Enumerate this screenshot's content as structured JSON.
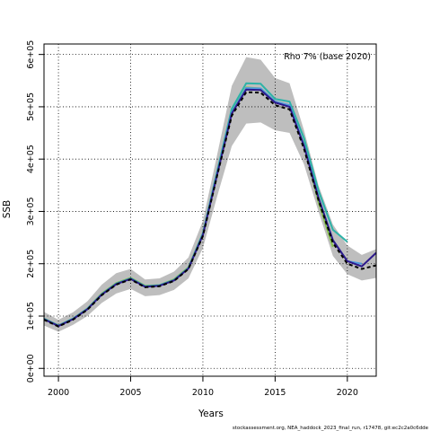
{
  "chart_data": {
    "type": "line",
    "title": "",
    "xlabel": "Years",
    "ylabel": "SSB",
    "annotation": "Rho 7% (base 2020)",
    "footer": "stockassessment.org, NEA_haddock_2023_final_run, r17478, git:ec2c2a0c6dde",
    "xlim": [
      1999,
      2022
    ],
    "ylim": [
      -15000,
      620000
    ],
    "x_ticks": [
      2000,
      2005,
      2010,
      2015,
      2020
    ],
    "x_tick_labels": [
      "2000",
      "2005",
      "2010",
      "2015",
      "2020"
    ],
    "y_ticks": [
      0,
      100000,
      200000,
      300000,
      400000,
      500000,
      600000
    ],
    "y_tick_labels": [
      "0e+00",
      "1e+05",
      "2e+05",
      "3e+05",
      "4e+05",
      "5e+05",
      "6e+05"
    ],
    "grid": true,
    "colors": {
      "band": "#bebebe",
      "base": "#000000",
      "peel_1": "#2e1a8c",
      "peel_2": "#4f9be0",
      "peel_3": "#2db3a8",
      "peel_4": "#86c24a"
    },
    "confidence_band": {
      "x": [
        1999,
        2000,
        2001,
        2002,
        2003,
        2004,
        2005,
        2006,
        2007,
        2008,
        2009,
        2010,
        2011,
        2012,
        2013,
        2014,
        2015,
        2016,
        2017,
        2018,
        2019,
        2020,
        2021,
        2022
      ],
      "lower": [
        82000,
        70000,
        83000,
        100000,
        125000,
        143000,
        152000,
        138000,
        140000,
        150000,
        172000,
        230000,
        330000,
        425000,
        468000,
        470000,
        455000,
        450000,
        390000,
        300000,
        215000,
        180000,
        168000,
        173000
      ],
      "upper": [
        108000,
        93000,
        107000,
        128000,
        160000,
        182000,
        190000,
        170000,
        172000,
        185000,
        212000,
        282000,
        410000,
        540000,
        595000,
        590000,
        555000,
        545000,
        455000,
        350000,
        275000,
        235000,
        217000,
        228000
      ]
    },
    "series": [
      {
        "color_key": "base",
        "dashed": true,
        "x": [
          1999,
          2000,
          2001,
          2002,
          2003,
          2004,
          2005,
          2006,
          2007,
          2008,
          2009,
          2010,
          2011,
          2012,
          2013,
          2014,
          2015,
          2016,
          2017,
          2018,
          2019,
          2020,
          2021,
          2022
        ],
        "y": [
          93000,
          80000,
          93000,
          112000,
          140000,
          160000,
          170000,
          155000,
          157000,
          167000,
          190000,
          253000,
          370000,
          483000,
          528000,
          527000,
          503000,
          495000,
          420000,
          322000,
          240000,
          200000,
          190000,
          197000
        ]
      },
      {
        "color_key": "peel_1",
        "dashed": false,
        "x": [
          1999,
          2000,
          2001,
          2002,
          2003,
          2004,
          2005,
          2006,
          2007,
          2008,
          2009,
          2010,
          2011,
          2012,
          2013,
          2014,
          2015,
          2016,
          2017,
          2018,
          2019,
          2020,
          2021,
          2022
        ],
        "y": [
          94000,
          81000,
          94000,
          113000,
          141000,
          161000,
          171000,
          156000,
          158000,
          168000,
          191000,
          255000,
          372000,
          487000,
          533000,
          532000,
          508000,
          500000,
          425000,
          326000,
          245000,
          205000,
          195000,
          221000
        ]
      },
      {
        "color_key": "peel_2",
        "dashed": false,
        "x": [
          1999,
          2000,
          2001,
          2002,
          2003,
          2004,
          2005,
          2006,
          2007,
          2008,
          2009,
          2010,
          2011,
          2012,
          2013,
          2014,
          2015,
          2016,
          2017,
          2018,
          2019,
          2020,
          2021
        ],
        "y": [
          94000,
          81000,
          94000,
          113000,
          141000,
          161000,
          171000,
          156000,
          158000,
          168000,
          191000,
          255000,
          373000,
          489000,
          536000,
          535000,
          510000,
          503000,
          427000,
          327000,
          245000,
          205000,
          200000
        ]
      },
      {
        "color_key": "peel_3",
        "dashed": false,
        "x": [
          1999,
          2000,
          2001,
          2002,
          2003,
          2004,
          2005,
          2006,
          2007,
          2008,
          2009,
          2010,
          2011,
          2012,
          2013,
          2014,
          2015,
          2016,
          2017,
          2018,
          2019,
          2020
        ],
        "y": [
          95000,
          82000,
          95000,
          114000,
          142000,
          162000,
          172000,
          157000,
          159000,
          169000,
          192000,
          258000,
          378000,
          496000,
          545000,
          544000,
          515000,
          510000,
          440000,
          340000,
          265000,
          242000
        ]
      },
      {
        "color_key": "peel_4",
        "dashed": false,
        "x": [
          1999,
          2000,
          2001,
          2002,
          2003,
          2004,
          2005,
          2006,
          2007,
          2008,
          2009,
          2010,
          2011,
          2012,
          2013,
          2014,
          2015,
          2016,
          2017,
          2018,
          2019
        ],
        "y": [
          95000,
          82000,
          95000,
          114000,
          143000,
          163000,
          173000,
          158000,
          159000,
          170000,
          193000,
          258000,
          375000,
          490000,
          537000,
          535000,
          510000,
          501000,
          428000,
          318000,
          232000
        ]
      }
    ]
  }
}
